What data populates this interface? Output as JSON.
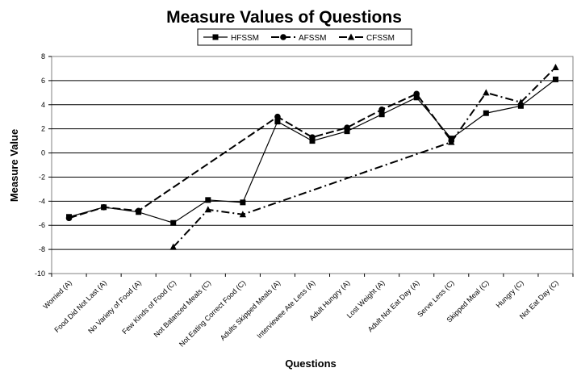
{
  "chart_data": {
    "type": "line",
    "title": "Measure Values of Questions",
    "xlabel": "Questions",
    "ylabel": "Measure Value",
    "ylim": [
      -10,
      8
    ],
    "yticks": [
      -10,
      -8,
      -6,
      -4,
      -2,
      0,
      2,
      4,
      6,
      8
    ],
    "grid": "horizontal",
    "legend_position": "top-right",
    "categories": [
      "Worried (A)",
      "Food Did Not Last (A)",
      "No Variety of Food (A)",
      "Few Kinds of Food (C)",
      "Not Balanced Meals (C)",
      "Not Eating Correct Food (C)",
      "Adults Skipped Meals (A)",
      "Interviewee Ate Less (A)",
      "Adult Hungry (A)",
      "Lost Weight (A)",
      "Adult Not Eat Day (A)",
      "Serve Less (C)",
      "Skipped Meal (C)",
      "Hungry (C)",
      "Not Eat Day (C)"
    ],
    "series": [
      {
        "name": "HFSSM",
        "marker": "square",
        "dash": "solid",
        "values": [
          -5.3,
          -4.5,
          -4.9,
          -5.8,
          -3.9,
          -4.1,
          2.6,
          1.0,
          1.8,
          3.2,
          4.6,
          1.2,
          3.3,
          3.9,
          6.1
        ]
      },
      {
        "name": "AFSSM",
        "marker": "circle",
        "dash": "dashed",
        "values": [
          -5.4,
          -4.5,
          -4.8,
          null,
          null,
          null,
          3.0,
          1.3,
          2.1,
          3.6,
          4.9,
          1.0,
          null,
          null,
          null
        ]
      },
      {
        "name": "CFSSM",
        "marker": "triangle",
        "dash": "dashdot",
        "values": [
          null,
          null,
          null,
          -7.8,
          -4.7,
          -5.1,
          null,
          null,
          null,
          null,
          null,
          0.9,
          5.0,
          4.2,
          7.1
        ]
      }
    ]
  }
}
